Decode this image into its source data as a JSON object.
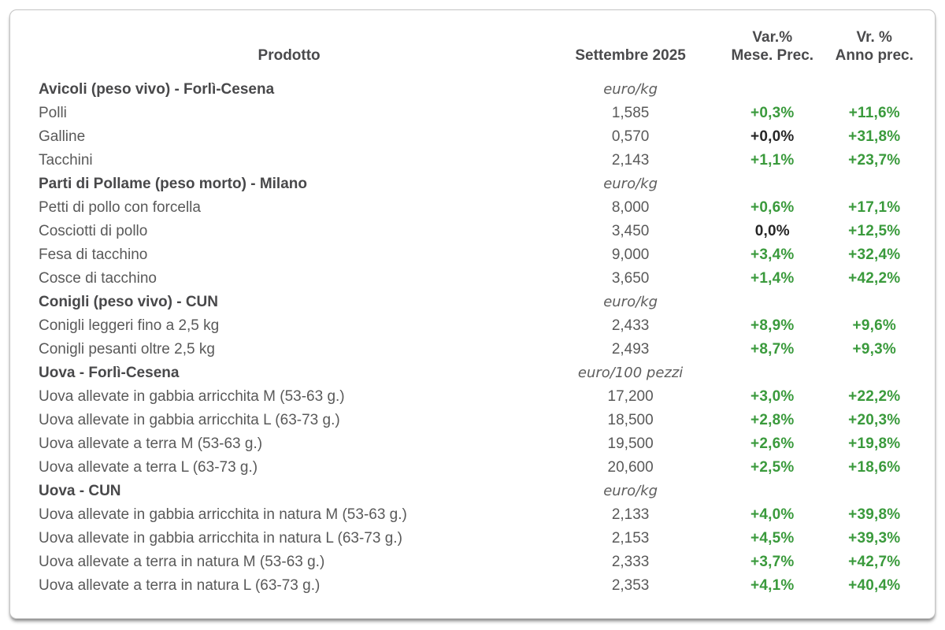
{
  "colors": {
    "positive_green": "#3a9a3c",
    "neutral_black": "#262626",
    "text_gray": "#595959",
    "heading_gray": "#4a4a4c",
    "card_border": "#c5c5c5"
  },
  "table": {
    "headers": {
      "product": "Prodotto",
      "month": "Settembre 2025",
      "var_line1": "Var.%",
      "var_line2": "Mese. Prec.",
      "yoy_line1": "Vr. %",
      "yoy_line2": "Anno prec."
    },
    "rows": [
      {
        "type": "section",
        "label": "Avicoli (peso vivo) - Forlì-Cesena",
        "unit": "euro/kg"
      },
      {
        "type": "item",
        "label": "Polli",
        "price": "1,585",
        "var": "+0,3%",
        "var_style": "green",
        "yoy": "+11,6%",
        "yoy_style": "green"
      },
      {
        "type": "item",
        "label": "Galline",
        "price": "0,570",
        "var": "+0,0%",
        "var_style": "black",
        "yoy": "+31,8%",
        "yoy_style": "green"
      },
      {
        "type": "item",
        "label": "Tacchini",
        "price": "2,143",
        "var": "+1,1%",
        "var_style": "green",
        "yoy": "+23,7%",
        "yoy_style": "green"
      },
      {
        "type": "section",
        "label": "Parti di Pollame (peso morto) - Milano",
        "unit": "euro/kg"
      },
      {
        "type": "item",
        "label": "Petti di pollo con forcella",
        "price": "8,000",
        "var": "+0,6%",
        "var_style": "green",
        "yoy": "+17,1%",
        "yoy_style": "green"
      },
      {
        "type": "item",
        "label": "Cosciotti di pollo",
        "price": "3,450",
        "var": "0,0%",
        "var_style": "black",
        "yoy": "+12,5%",
        "yoy_style": "green"
      },
      {
        "type": "item",
        "label": "Fesa di tacchino",
        "price": "9,000",
        "var": "+3,4%",
        "var_style": "green",
        "yoy": "+32,4%",
        "yoy_style": "green"
      },
      {
        "type": "item",
        "label": "Cosce di tacchino",
        "price": "3,650",
        "var": "+1,4%",
        "var_style": "green",
        "yoy": "+42,2%",
        "yoy_style": "green"
      },
      {
        "type": "section",
        "label": "Conigli (peso vivo) - CUN",
        "unit": "euro/kg"
      },
      {
        "type": "item",
        "label": "Conigli leggeri fino a 2,5 kg",
        "price": "2,433",
        "var": "+8,9%",
        "var_style": "green",
        "yoy": "+9,6%",
        "yoy_style": "green"
      },
      {
        "type": "item",
        "label": "Conigli pesanti oltre 2,5 kg",
        "price": "2,493",
        "var": "+8,7%",
        "var_style": "green",
        "yoy": "+9,3%",
        "yoy_style": "green"
      },
      {
        "type": "section",
        "label": "Uova - Forlì-Cesena",
        "unit": "euro/100 pezzi"
      },
      {
        "type": "item",
        "label": "Uova allevate in gabbia arricchita M (53-63 g.)",
        "price": "17,200",
        "var": "+3,0%",
        "var_style": "green",
        "yoy": "+22,2%",
        "yoy_style": "green"
      },
      {
        "type": "item",
        "label": "Uova allevate in gabbia arricchita L (63-73 g.)",
        "price": "18,500",
        "var": "+2,8%",
        "var_style": "green",
        "yoy": "+20,3%",
        "yoy_style": "green"
      },
      {
        "type": "item",
        "label": "Uova allevate a terra M (53-63 g.)",
        "price": "19,500",
        "var": "+2,6%",
        "var_style": "green",
        "yoy": "+19,8%",
        "yoy_style": "green"
      },
      {
        "type": "item",
        "label": "Uova allevate a terra L (63-73 g.)",
        "price": "20,600",
        "var": "+2,5%",
        "var_style": "green",
        "yoy": "+18,6%",
        "yoy_style": "green"
      },
      {
        "type": "section",
        "label": "Uova - CUN",
        "unit": "euro/kg"
      },
      {
        "type": "item",
        "label": "Uova allevate in gabbia arricchita in natura M (53-63 g.)",
        "price": "2,133",
        "var": "+4,0%",
        "var_style": "green",
        "yoy": "+39,8%",
        "yoy_style": "green"
      },
      {
        "type": "item",
        "label": "Uova allevate in gabbia arricchita in natura L (63-73 g.)",
        "price": "2,153",
        "var": "+4,5%",
        "var_style": "green",
        "yoy": "+39,3%",
        "yoy_style": "green"
      },
      {
        "type": "item",
        "label": "Uova allevate a terra in natura M (53-63 g.)",
        "price": "2,333",
        "var": "+3,7%",
        "var_style": "green",
        "yoy": "+42,7%",
        "yoy_style": "green"
      },
      {
        "type": "item",
        "label": "Uova allevate a terra in natura L (63-73 g.)",
        "price": "2,353",
        "var": "+4,1%",
        "var_style": "green",
        "yoy": "+40,4%",
        "yoy_style": "green"
      }
    ]
  }
}
